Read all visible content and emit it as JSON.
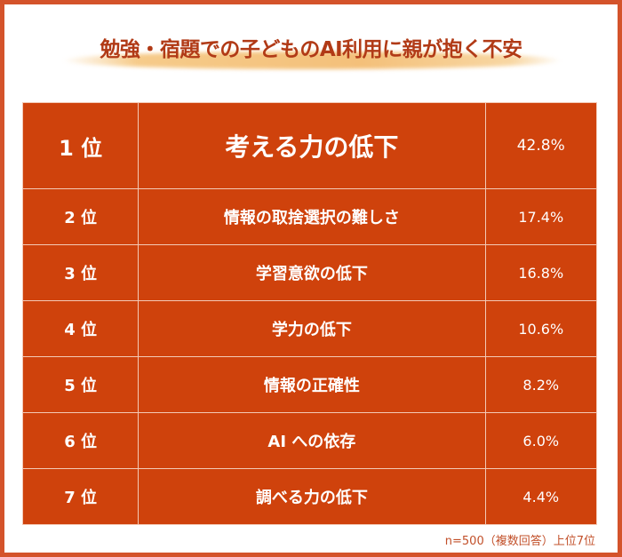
{
  "title": "勉強・宿題での子どものAI利用に親が抱く不安",
  "note": "n=500（複数回答）上位7位",
  "colors": {
    "cell": "#cf420c",
    "frame": "#d4532b",
    "title": "#b13a16"
  },
  "chart_data": {
    "type": "table",
    "rows": [
      {
        "rank": "1 位",
        "item": "考える力の低下",
        "value": "42.8%"
      },
      {
        "rank": "2 位",
        "item": "情報の取捨選択の難しさ",
        "value": "17.4%"
      },
      {
        "rank": "3 位",
        "item": "学習意欲の低下",
        "value": "16.8%"
      },
      {
        "rank": "4 位",
        "item": "学力の低下",
        "value": "10.6%"
      },
      {
        "rank": "5 位",
        "item": "情報の正確性",
        "value": "8.2%"
      },
      {
        "rank": "6 位",
        "item": "AI への依存",
        "value": "6.0%"
      },
      {
        "rank": "7 位",
        "item": "調べる力の低下",
        "value": "4.4%"
      }
    ]
  }
}
